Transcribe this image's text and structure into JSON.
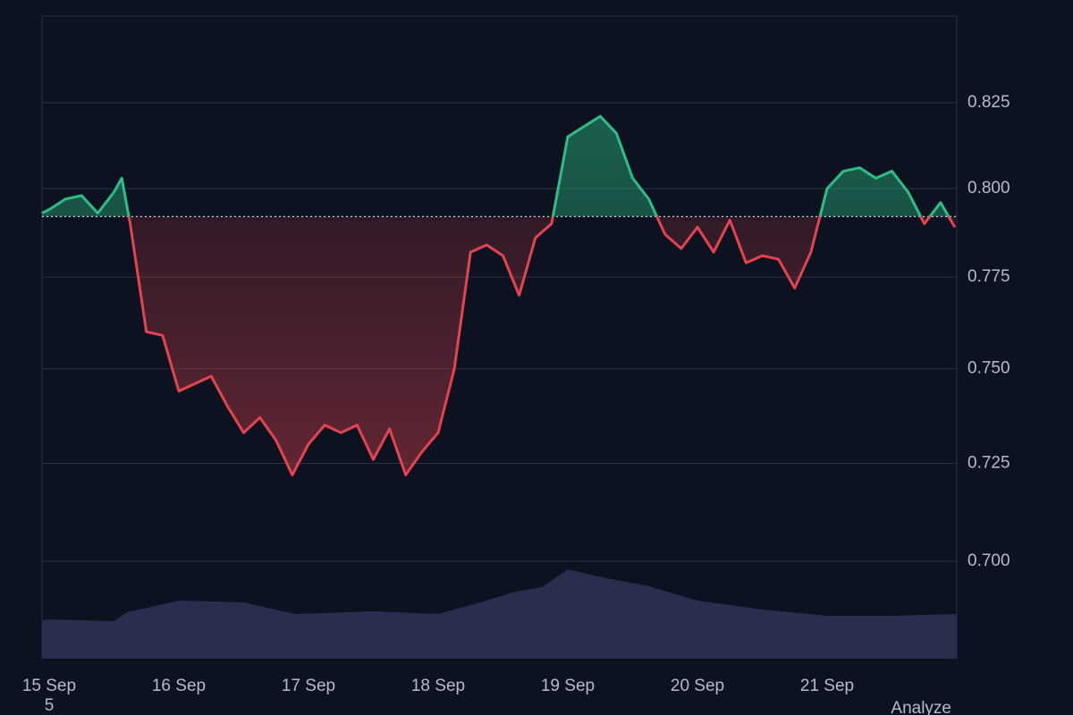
{
  "chart_data": {
    "type": "baseline",
    "x": [
      14.945,
      15.0,
      15.125,
      15.25,
      15.375,
      15.5,
      15.56,
      15.625,
      15.75,
      15.875,
      16.0,
      16.125,
      16.25,
      16.375,
      16.5,
      16.625,
      16.75,
      16.875,
      17.0,
      17.125,
      17.25,
      17.375,
      17.5,
      17.625,
      17.75,
      17.875,
      18.0,
      18.125,
      18.25,
      18.375,
      18.5,
      18.625,
      18.75,
      18.875,
      19.0,
      19.125,
      19.25,
      19.375,
      19.5,
      19.625,
      19.75,
      19.875,
      20.0,
      20.125,
      20.25,
      20.375,
      20.5,
      20.625,
      20.75,
      20.875,
      21.0,
      21.125,
      21.25,
      21.375,
      21.5,
      21.625,
      21.75,
      21.875,
      21.985
    ],
    "values": [
      0.793,
      0.794,
      0.797,
      0.798,
      0.793,
      0.799,
      0.803,
      0.79,
      0.76,
      0.759,
      0.744,
      0.746,
      0.748,
      0.74,
      0.733,
      0.737,
      0.731,
      0.722,
      0.73,
      0.735,
      0.733,
      0.735,
      0.726,
      0.734,
      0.722,
      0.728,
      0.733,
      0.75,
      0.782,
      0.784,
      0.781,
      0.77,
      0.786,
      0.79,
      0.815,
      0.818,
      0.821,
      0.816,
      0.803,
      0.797,
      0.787,
      0.783,
      0.789,
      0.782,
      0.791,
      0.779,
      0.781,
      0.78,
      0.772,
      0.782,
      0.8,
      0.805,
      0.806,
      0.803,
      0.805,
      0.799,
      0.79,
      0.796,
      0.789
    ],
    "baseline": 0.792,
    "up_color": "#2ebd85",
    "down_color": "#e5434f",
    "log_scale": true,
    "grid": true,
    "xlim": [
      14.945,
      22.0
    ],
    "ylim": [
      0.676,
      0.851
    ],
    "yticks": [
      {
        "value": 0.7,
        "label": "0.700"
      },
      {
        "value": 0.725,
        "label": "0.725"
      },
      {
        "value": 0.75,
        "label": "0.750"
      },
      {
        "value": 0.775,
        "label": "0.775"
      },
      {
        "value": 0.8,
        "label": "0.800"
      },
      {
        "value": 0.825,
        "label": "0.825"
      }
    ],
    "xticks": [
      {
        "value": 15,
        "label": "15 Sep"
      },
      {
        "value": 16,
        "label": "16 Sep"
      },
      {
        "value": 17,
        "label": "17 Sep"
      },
      {
        "value": 18,
        "label": "18 Sep"
      },
      {
        "value": 19,
        "label": "19 Sep"
      },
      {
        "value": 20,
        "label": "20 Sep"
      },
      {
        "value": 21,
        "label": "21 Sep"
      }
    ],
    "volume": {
      "x": [
        14.945,
        15.0,
        15.5,
        15.6,
        16.0,
        16.5,
        16.9,
        17.5,
        18.0,
        18.3,
        18.6,
        18.8,
        19.0,
        19.3,
        19.6,
        20.0,
        20.5,
        21.0,
        21.5,
        22.0
      ],
      "values": [
        43,
        44,
        42,
        52,
        65,
        63,
        50,
        53,
        50,
        62,
        75,
        80,
        100,
        90,
        82,
        65,
        55,
        48,
        48,
        50
      ],
      "ylim": [
        0,
        110
      ],
      "color": "#2a2d4e"
    },
    "footer_left": "5",
    "footer_right": "Analyze"
  }
}
